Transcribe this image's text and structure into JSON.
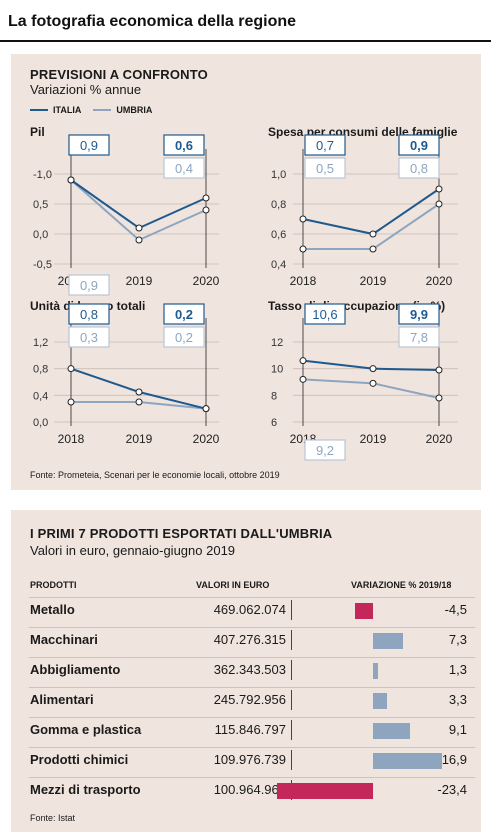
{
  "main_title": "La fotografia economica della regione",
  "section1": {
    "title": "PREVISIONI A CONFRONTO",
    "subtitle": "Variazioni % annue",
    "legend": [
      {
        "name": "ITALIA",
        "color": "#1f5a8f"
      },
      {
        "name": "UMBRIA",
        "color": "#8ea5c0"
      }
    ],
    "source": "Fonte: Prometeia, Scenari per le economie locali, ottobre 2019"
  },
  "section2": {
    "title": "I PRIMI 7 PRODOTTI ESPORTATI DALL'UMBRIA",
    "subtitle": "Valori in euro, gennaio-giugno 2019",
    "col_products": "PRODOTTI",
    "col_values": "VALORI IN EURO",
    "col_variation": "VARIAZIONE % 2019/18",
    "source": "Fonte: Istat"
  },
  "chart_data": [
    {
      "type": "line",
      "title": "Pil",
      "x": [
        "2018",
        "2019",
        "2020"
      ],
      "yticks": [
        "-1,0",
        "0,5",
        "0,0",
        "-0,5"
      ],
      "ylim": [
        -0.5,
        1.0
      ],
      "series": [
        {
          "name": "ITALIA",
          "values": [
            0.9,
            0.1,
            0.6
          ],
          "color": "#1f5a8f"
        },
        {
          "name": "UMBRIA",
          "values": [
            0.9,
            -0.1,
            0.4
          ],
          "color": "#8ea5c0"
        }
      ],
      "labels": {
        "italia_2018": "0,9",
        "umbria_2018": "0,9",
        "italia_2020": "0,6",
        "umbria_2020": "0,4"
      }
    },
    {
      "type": "line",
      "title": "Spesa per consumi delle famiglie",
      "x": [
        "2018",
        "2019",
        "2020"
      ],
      "yticks": [
        "1,0",
        "0,8",
        "0,6",
        "0,4"
      ],
      "ylim": [
        0.4,
        1.0
      ],
      "series": [
        {
          "name": "ITALIA",
          "values": [
            0.7,
            0.6,
            0.9
          ],
          "color": "#1f5a8f"
        },
        {
          "name": "UMBRIA",
          "values": [
            0.5,
            0.5,
            0.8
          ],
          "color": "#8ea5c0"
        }
      ],
      "labels": {
        "italia_2018": "0,7",
        "umbria_2018": "0,5",
        "italia_2020": "0,9",
        "umbria_2020": "0,8"
      }
    },
    {
      "type": "line",
      "title": "Unità di lavoro totali",
      "x": [
        "2018",
        "2019",
        "2020"
      ],
      "yticks": [
        "1,2",
        "0,8",
        "0,4",
        "0,0"
      ],
      "ylim": [
        0.0,
        1.2
      ],
      "series": [
        {
          "name": "ITALIA",
          "values": [
            0.8,
            0.45,
            0.2
          ],
          "color": "#1f5a8f"
        },
        {
          "name": "UMBRIA",
          "values": [
            0.3,
            0.3,
            0.2
          ],
          "color": "#8ea5c0"
        }
      ],
      "labels": {
        "italia_2018": "0,8",
        "umbria_2018": "0,3",
        "italia_2020": "0,2",
        "umbria_2020": "0,2"
      }
    },
    {
      "type": "line",
      "title": "Tasso di disoccupazione  (in %)",
      "x": [
        "2018",
        "2019",
        "2020"
      ],
      "yticks": [
        "12",
        "10",
        "8",
        "6"
      ],
      "ylim": [
        6,
        12
      ],
      "series": [
        {
          "name": "ITALIA",
          "values": [
            10.6,
            10.0,
            9.9
          ],
          "color": "#1f5a8f"
        },
        {
          "name": "UMBRIA",
          "values": [
            9.2,
            8.9,
            7.8
          ],
          "color": "#8ea5c0"
        }
      ],
      "labels": {
        "italia_2018": "10,6",
        "umbria_2018": "9,2",
        "italia_2020": "9,9",
        "umbria_2020": "7,8"
      }
    },
    {
      "type": "bar",
      "categories": [
        "Metallo",
        "Macchinari",
        "Abbigliamento",
        "Alimentari",
        "Gomma e plastica",
        "Prodotti chimici",
        "Mezzi di trasporto"
      ],
      "values_euro": [
        "469.062.074",
        "407.276.315",
        "362.343.503",
        "245.792.956",
        "115.846.797",
        "109.976.739",
        "100.964.968"
      ],
      "variation": [
        -4.5,
        7.3,
        1.3,
        3.3,
        9.1,
        16.9,
        -23.4
      ],
      "variation_labels": [
        "-4,5",
        "7,3",
        "1,3",
        "3,3",
        "9,1",
        "16,9",
        "-23,4"
      ],
      "colors": {
        "positive": "#8ea5c0",
        "negative": "#c4275a"
      }
    }
  ]
}
